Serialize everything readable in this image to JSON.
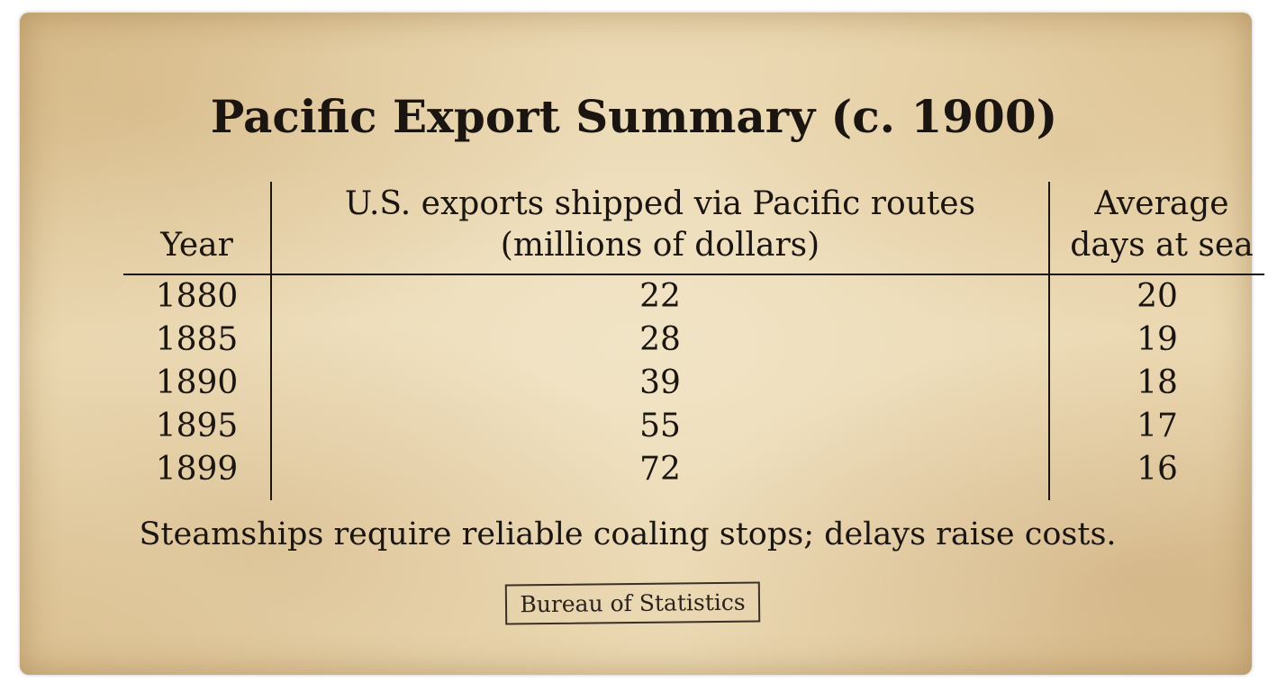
{
  "title": "Pacific Export Summary (c. 1900)",
  "table": {
    "columns": [
      "Year",
      "U.S. exports shipped via Pacific routes (millions of dollars)",
      "Average days at sea"
    ],
    "rows": [
      [
        1880,
        22,
        20
      ],
      [
        1885,
        28,
        19
      ],
      [
        1890,
        39,
        18
      ],
      [
        1895,
        55,
        17
      ],
      [
        1899,
        72,
        16
      ]
    ]
  },
  "note": "Steamships require reliable coaling stops; delays raise costs.",
  "stamp": "Bureau of Statistics"
}
